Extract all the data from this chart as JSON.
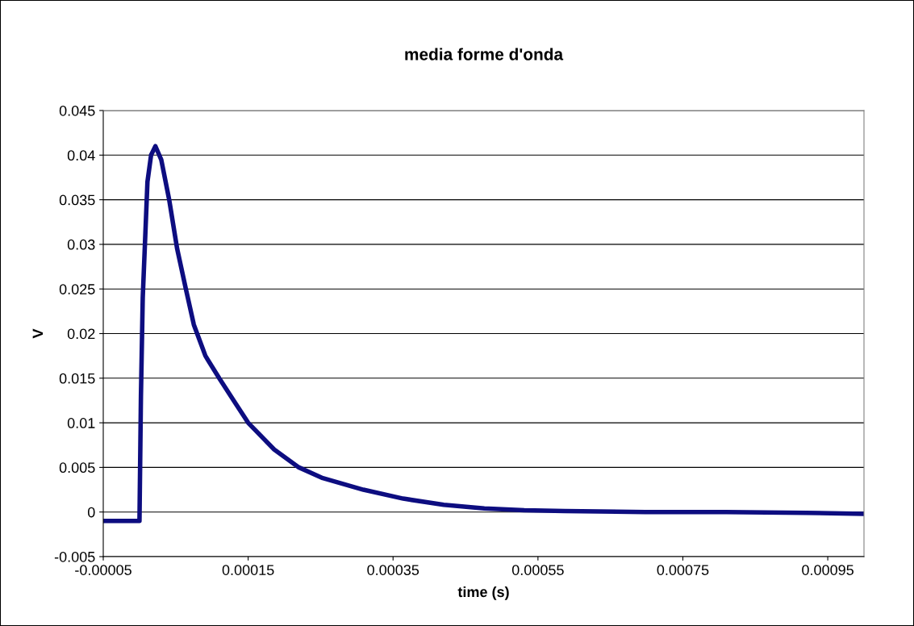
{
  "chart_data": {
    "type": "line",
    "title": "media forme d'onda",
    "xlabel": "time (s)",
    "ylabel": "V",
    "x": [
      -5e-05,
      -2.5e-05,
      0.0,
      2e-06,
      4.5e-06,
      8e-06,
      1.1e-05,
      1.6e-05,
      2.2e-05,
      3e-05,
      4.1e-05,
      5.2e-05,
      6.4e-05,
      7.5e-05,
      9.1e-05,
      0.00011,
      0.00013,
      0.00015,
      0.000186,
      0.00022,
      0.000253,
      0.000309,
      0.000364,
      0.00042,
      0.000476,
      0.000531,
      0.000587,
      0.000698,
      0.00081,
      0.00092,
      0.001
    ],
    "series": [
      {
        "color": "#0d0d80",
        "values": [
          -0.001,
          -0.001,
          -0.001,
          0.013,
          0.024,
          0.031,
          0.037,
          0.04,
          0.041,
          0.0395,
          0.035,
          0.0295,
          0.025,
          0.021,
          0.0175,
          0.015,
          0.0125,
          0.01,
          0.007,
          0.005,
          0.0038,
          0.0025,
          0.0015,
          0.0008,
          0.0004,
          0.0002,
          0.0001,
          0.0,
          0.0,
          -0.0001,
          -0.0002
        ]
      }
    ],
    "xlim": [
      -5e-05,
      0.001
    ],
    "ylim": [
      -0.005,
      0.045
    ],
    "xticks": [
      {
        "value": -5e-05,
        "label": "-0.00005"
      },
      0.00015,
      0.00035,
      0.00055,
      0.00075,
      0.00095
    ],
    "yticks": [
      -0.005,
      0,
      0.005,
      0.01,
      0.015,
      0.02,
      0.025,
      0.03,
      0.035,
      0.04,
      0.045
    ],
    "grid": "y",
    "legend": false,
    "marker": "none",
    "line_style": "solid"
  }
}
